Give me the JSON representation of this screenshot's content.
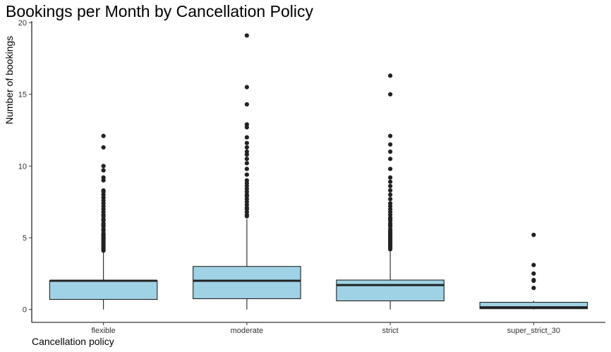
{
  "chart_data": {
    "type": "box",
    "title": "Bookings per Month by Cancellation Policy",
    "xlabel": "Cancellation policy",
    "ylabel": "Number of bookings",
    "ylim": [
      -0.9,
      20.1
    ],
    "yticks": [
      0,
      5,
      10,
      15,
      20
    ],
    "grid": false,
    "colors": {
      "box_fill": "#9fd2e4",
      "stroke": "#222222",
      "axis": "#000000"
    },
    "categories": [
      "flexible",
      "moderate",
      "strict",
      "super_strict_30"
    ],
    "boxes": [
      {
        "category": "flexible",
        "whisker_low": 0.0,
        "q1": 0.7,
        "median": 2.0,
        "q3": 2.0,
        "whisker_high": 4.0,
        "outliers": [
          4.1,
          4.2,
          4.3,
          4.4,
          4.5,
          4.6,
          4.7,
          4.8,
          4.9,
          5.0,
          5.1,
          5.2,
          5.3,
          5.5,
          5.6,
          5.8,
          5.9,
          6.0,
          6.2,
          6.3,
          6.5,
          6.6,
          6.8,
          7.0,
          7.2,
          7.4,
          7.6,
          7.8,
          8.0,
          8.2,
          8.3,
          9.0,
          9.2,
          9.7,
          10.0,
          11.3,
          12.1
        ]
      },
      {
        "category": "moderate",
        "whisker_low": 0.0,
        "q1": 0.75,
        "median": 2.0,
        "q3": 3.0,
        "whisker_high": 6.3,
        "outliers": [
          6.5,
          6.6,
          6.8,
          7.0,
          7.1,
          7.3,
          7.5,
          7.7,
          7.9,
          8.0,
          8.2,
          8.4,
          8.6,
          8.8,
          9.0,
          9.4,
          9.8,
          10.2,
          10.5,
          10.8,
          11.0,
          11.3,
          11.6,
          12.0,
          12.7,
          12.9,
          14.3,
          15.5,
          19.1
        ]
      },
      {
        "category": "strict",
        "whisker_low": 0.0,
        "q1": 0.6,
        "median": 1.7,
        "q3": 2.05,
        "whisker_high": 4.1,
        "outliers": [
          4.2,
          4.3,
          4.4,
          4.5,
          4.6,
          4.7,
          4.8,
          4.9,
          5.0,
          5.1,
          5.2,
          5.3,
          5.4,
          5.5,
          5.6,
          5.8,
          5.9,
          6.0,
          6.2,
          6.3,
          6.4,
          6.6,
          6.8,
          7.0,
          7.2,
          7.4,
          7.7,
          8.0,
          8.3,
          8.6,
          8.9,
          9.2,
          9.8,
          10.5,
          11.0,
          11.5,
          12.1,
          15.0,
          16.3
        ]
      },
      {
        "category": "super_strict_30",
        "whisker_low": 0.0,
        "q1": 0.05,
        "median": 0.15,
        "q3": 0.5,
        "whisker_high": 0.6,
        "outliers": [
          1.5,
          2.0,
          2.05,
          2.5,
          3.1,
          5.2
        ]
      }
    ]
  }
}
